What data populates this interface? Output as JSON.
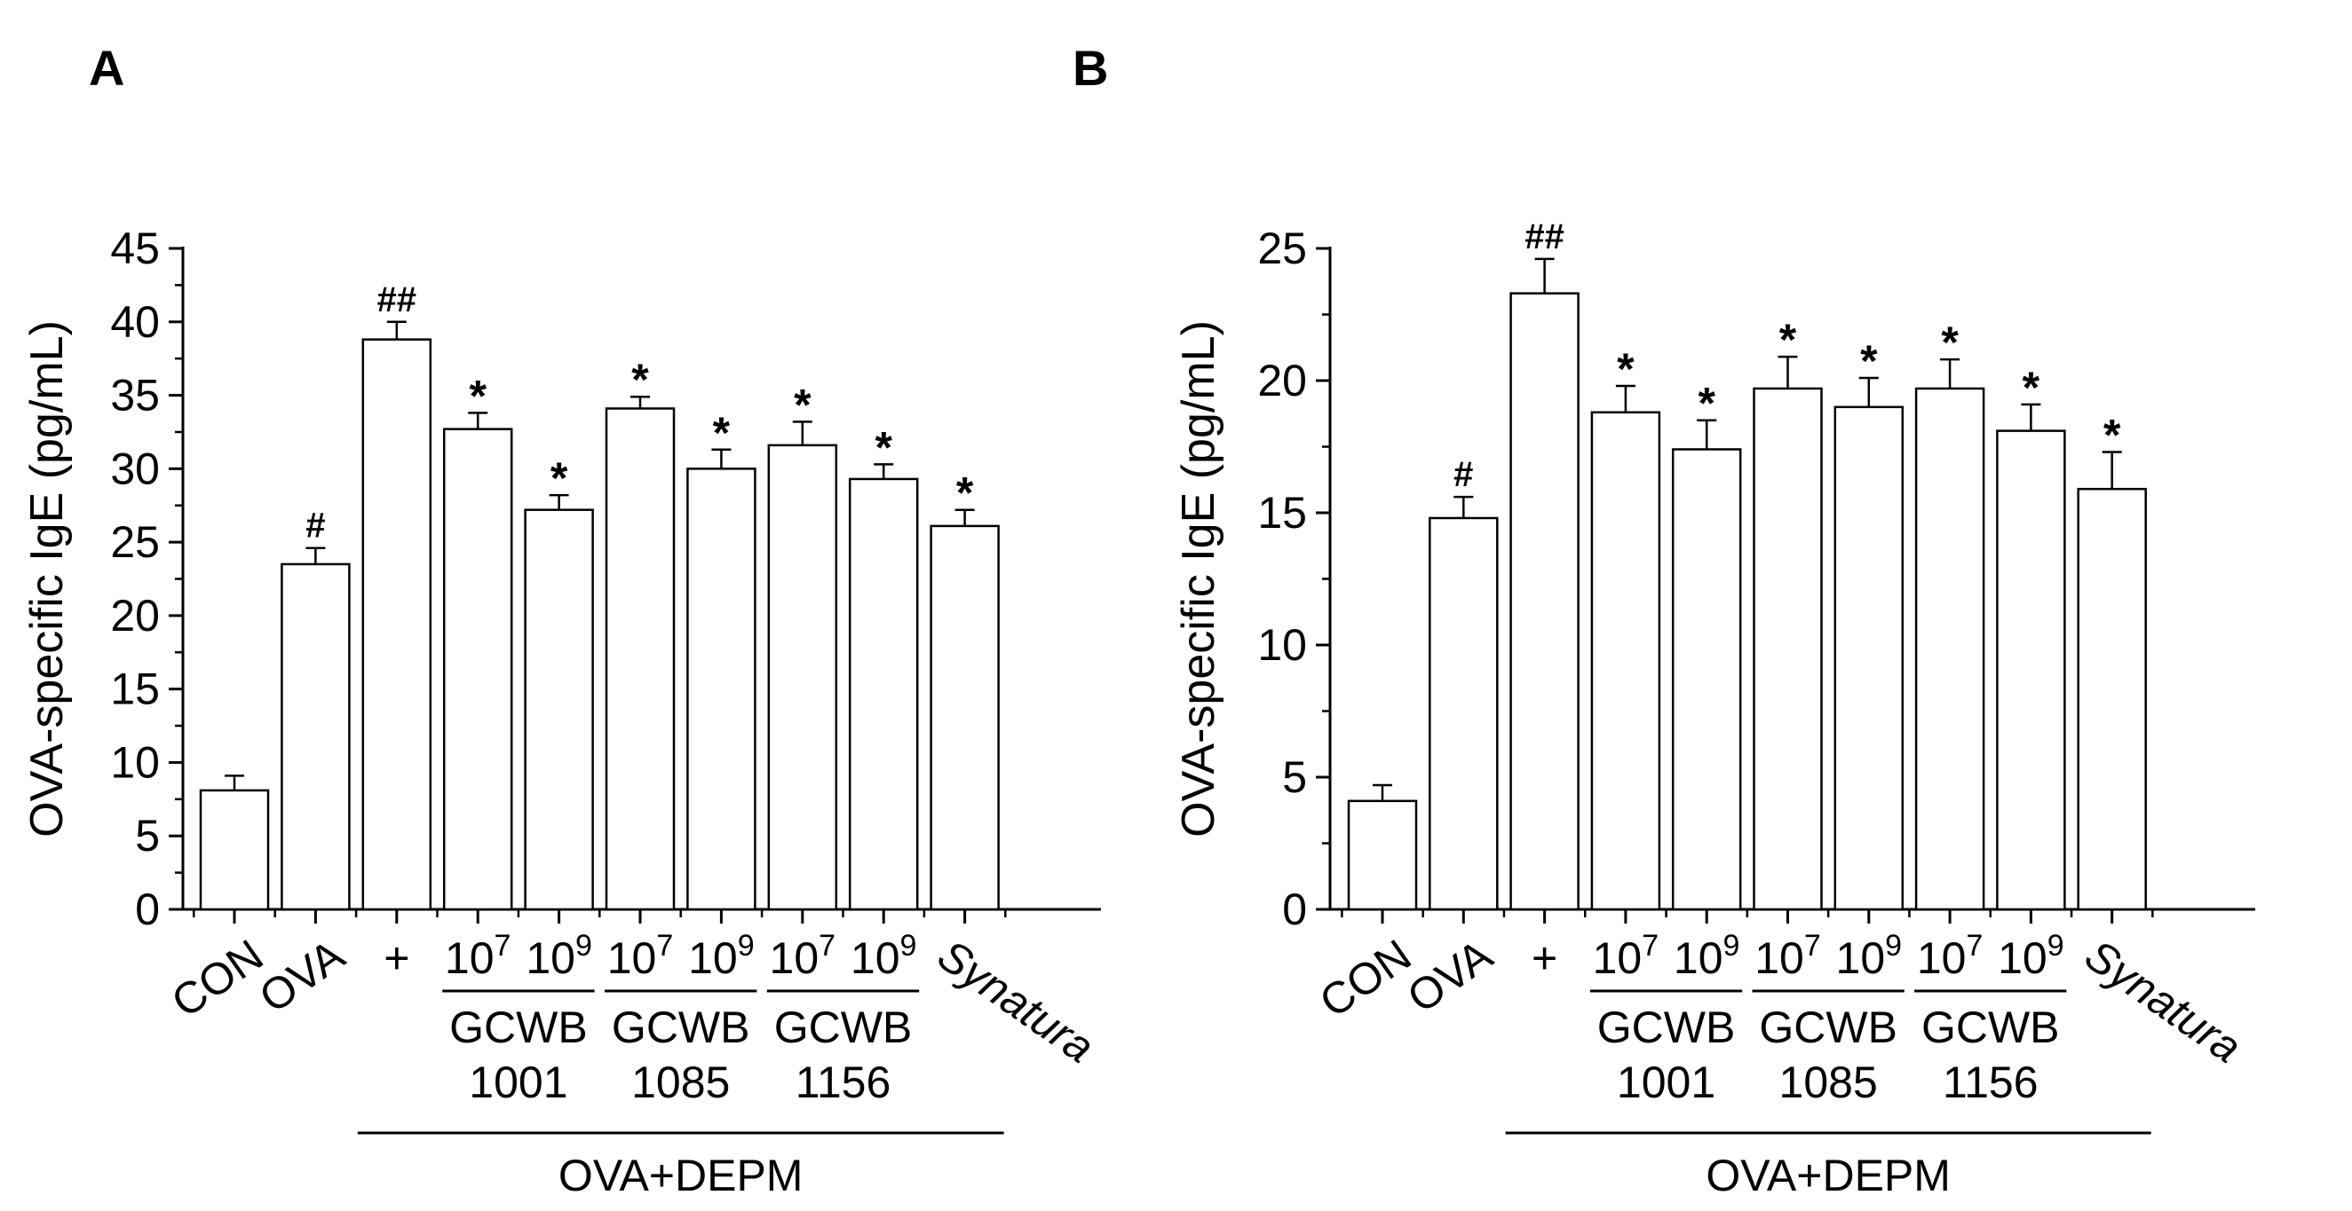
{
  "figure": {
    "panels": [
      {
        "letter": "A",
        "chart_data": {
          "type": "bar",
          "title": "",
          "xlabel": "",
          "ylabel": "OVA-specific IgE (pg/mL)",
          "ylim": [
            0,
            45
          ],
          "yticks": [
            0,
            5,
            10,
            15,
            20,
            25,
            30,
            35,
            40,
            45
          ],
          "grid": false,
          "categories": [
            "CON",
            "OVA",
            "OVA+DEPM",
            "GCWB1001 10^7",
            "GCWB1001 10^9",
            "GCWB1085 10^7",
            "GCWB1085 10^9",
            "GCWB1156 10^7",
            "GCWB1156 10^9",
            "Synatura"
          ],
          "values": [
            8.1,
            23.5,
            38.8,
            32.7,
            27.2,
            34.1,
            30.0,
            31.6,
            29.3,
            26.1
          ],
          "errors": [
            1.0,
            1.1,
            1.2,
            1.1,
            1.0,
            0.8,
            1.3,
            1.6,
            1.0,
            1.1
          ],
          "significance": [
            "",
            "#",
            "##",
            "*",
            "*",
            "*",
            "*",
            "*",
            "*",
            "*"
          ]
        }
      },
      {
        "letter": "B",
        "chart_data": {
          "type": "bar",
          "title": "",
          "xlabel": "",
          "ylabel": "OVA-specific IgE (pg/mL)",
          "ylim": [
            0,
            25
          ],
          "yticks": [
            0,
            5,
            10,
            15,
            20,
            25
          ],
          "grid": false,
          "categories": [
            "CON",
            "OVA",
            "OVA+DEPM",
            "GCWB1001 10^7",
            "GCWB1001 10^9",
            "GCWB1085 10^7",
            "GCWB1085 10^9",
            "GCWB1156 10^7",
            "GCWB1156 10^9",
            "Synatura"
          ],
          "values": [
            4.1,
            14.8,
            23.3,
            18.8,
            17.4,
            19.7,
            19.0,
            19.7,
            18.1,
            15.9
          ],
          "errors": [
            0.6,
            0.8,
            1.3,
            1.0,
            1.1,
            1.2,
            1.1,
            1.1,
            1.0,
            1.4
          ],
          "significance": [
            "",
            "#",
            "##",
            "*",
            "*",
            "*",
            "*",
            "*",
            "*",
            "*"
          ]
        }
      }
    ],
    "x_labels": {
      "con": "CON",
      "ova": "OVA",
      "plus": "+",
      "base": "10",
      "exp_low": "7",
      "exp_high": "9",
      "strain_prefix": "GCWB",
      "strains": [
        "1001",
        "1085",
        "1156"
      ],
      "synatura": "Synatura",
      "group": "OVA+DEPM"
    }
  }
}
